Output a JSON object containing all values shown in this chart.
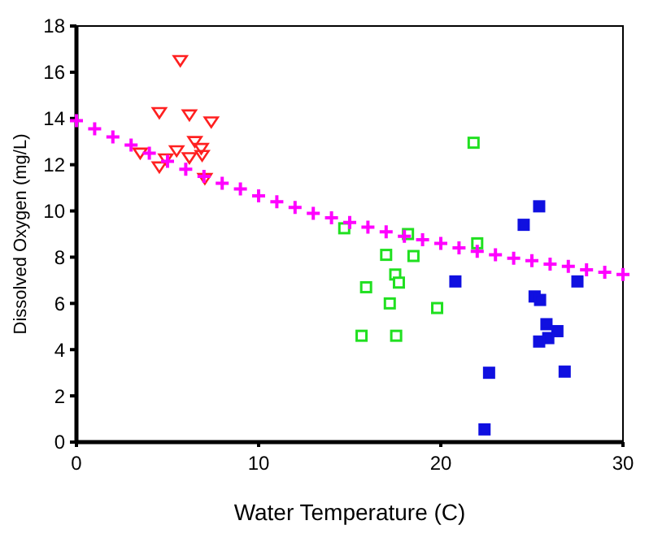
{
  "chart_data": {
    "type": "scatter",
    "xlabel": "Water Temperature (C)",
    "ylabel": "Dissolved Oxygen (mg/L)",
    "xlim": [
      0,
      30
    ],
    "ylim": [
      0,
      18
    ],
    "xticks": [
      0,
      10,
      20,
      30
    ],
    "yticks": [
      0,
      2,
      4,
      6,
      8,
      10,
      12,
      14,
      16,
      18
    ],
    "grid": false,
    "series": [
      {
        "color": "#ff00ff",
        "marker": "cross",
        "x": [
          0,
          1,
          2,
          3,
          4,
          5,
          6,
          7,
          8,
          9,
          10,
          11,
          12,
          13,
          14,
          15,
          16,
          17,
          18,
          19,
          20,
          21,
          22,
          23,
          24,
          25,
          26,
          27,
          28,
          29,
          30
        ],
        "values": [
          13.9,
          13.55,
          13.2,
          12.85,
          12.5,
          12.15,
          11.8,
          11.5,
          11.2,
          10.95,
          10.65,
          10.4,
          10.15,
          9.9,
          9.7,
          9.5,
          9.3,
          9.1,
          8.9,
          8.75,
          8.6,
          8.4,
          8.25,
          8.1,
          7.95,
          7.85,
          7.7,
          7.6,
          7.45,
          7.35,
          7.25
        ]
      },
      {
        "color": "#ff2020",
        "marker": "triangle",
        "x": [
          5.7,
          4.55,
          6.2,
          7.4,
          6.5,
          6.85,
          5.5,
          3.5,
          6.9,
          4.9,
          6.2,
          4.55,
          7.05
        ],
        "values": [
          16.5,
          14.25,
          14.15,
          13.85,
          13.0,
          12.7,
          12.6,
          12.5,
          12.4,
          12.25,
          12.3,
          11.9,
          11.4
        ]
      },
      {
        "color": "#20e020",
        "marker": "square",
        "x": [
          14.7,
          18.2,
          22.0,
          21.8,
          17.0,
          18.5,
          17.5,
          17.7,
          15.9,
          17.2,
          19.8,
          15.65,
          17.55
        ],
        "values": [
          9.25,
          9.0,
          8.6,
          12.95,
          8.1,
          8.05,
          7.25,
          6.9,
          6.7,
          6.0,
          5.8,
          4.6,
          4.6
        ]
      },
      {
        "color": "#1010e0",
        "marker": "square",
        "x": [
          25.4,
          24.55,
          20.8,
          27.5,
          25.15,
          25.45,
          25.8,
          26.4,
          25.9,
          25.4,
          22.65,
          26.8,
          22.4
        ],
        "values": [
          10.2,
          9.4,
          6.95,
          6.95,
          6.3,
          6.15,
          5.1,
          4.8,
          4.5,
          4.35,
          3.0,
          3.05,
          0.55
        ]
      }
    ]
  }
}
